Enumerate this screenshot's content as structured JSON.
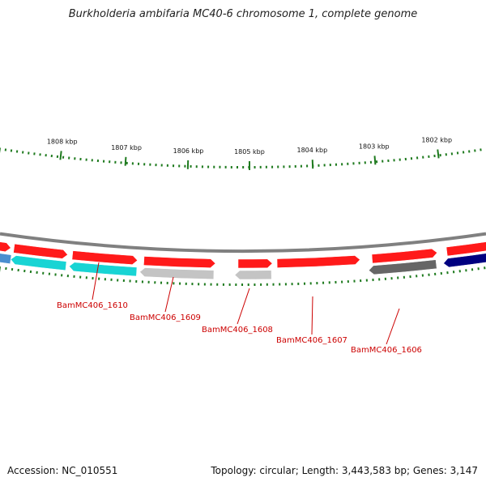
{
  "title": "Burkholderia ambifaria MC40-6 chromosome 1, complete genome",
  "footer": {
    "accession": "Accession: NC_010551",
    "summary": "Topology: circular; Length: 3,443,583 bp; Genes: 3,147"
  },
  "colors": {
    "forward_gene": "#ff1a1a",
    "cyan_gene": "#18d4d4",
    "light_gray_gene": "#c4c4c4",
    "dark_gray_gene": "#666666",
    "navy_gene": "#000080",
    "blue_gene": "#4a8fcf",
    "tick_green": "#1e7a1e",
    "backbone": "#808080",
    "label_red": "#cc0000"
  },
  "kbp_labels": [
    "1808 kbp",
    "1807 kbp",
    "1806 kbp",
    "1805 kbp",
    "1804 kbp",
    "1803 kbp",
    "1802 kbp"
  ],
  "gene_labels": [
    "BamMC406_1610",
    "BamMC406_1609",
    "BamMC406_1608",
    "BamMC406_1607",
    "BamMC406_1606"
  ]
}
